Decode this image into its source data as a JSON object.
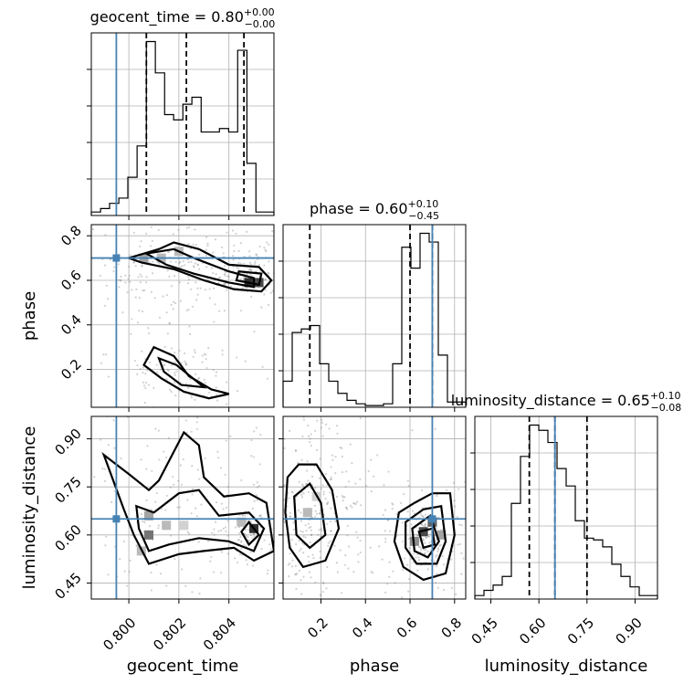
{
  "chart_data": {
    "type": "corner",
    "truth_color": "#4682b4",
    "parameters": [
      {
        "name": "geocent_time",
        "xlabel": "geocent_time",
        "range": [
          0.7985,
          0.8058
        ],
        "ticks": [
          0.8,
          0.802,
          0.804
        ],
        "tick_labels": [
          "0.800",
          "0.802",
          "0.804"
        ],
        "truth": 0.7995,
        "quantiles": [
          0.8007,
          0.8023,
          0.8046
        ],
        "title": "geocent_time = 0.80",
        "title_plus": "+0.00",
        "title_minus": "−0.00",
        "hist_edges": [
          0.7985,
          0.79887,
          0.79923,
          0.7996,
          0.79996,
          0.80033,
          0.8007,
          0.80106,
          0.80143,
          0.80179,
          0.80216,
          0.80252,
          0.80289,
          0.80326,
          0.80362,
          0.80399,
          0.80435,
          0.80472,
          0.80508,
          0.80545,
          0.8058
        ],
        "hist_counts": [
          0.02,
          0.04,
          0.07,
          0.1,
          0.22,
          0.4,
          1.0,
          0.82,
          0.58,
          0.55,
          0.64,
          0.68,
          0.48,
          0.48,
          0.5,
          0.48,
          0.95,
          0.3,
          0.02,
          0.02
        ]
      },
      {
        "name": "phase",
        "xlabel": "phase",
        "range": [
          0.03,
          0.85
        ],
        "ticks": [
          0.2,
          0.4,
          0.6,
          0.8
        ],
        "tick_labels": [
          "0.2",
          "0.4",
          "0.6",
          "0.8"
        ],
        "truth": 0.7,
        "quantiles": [
          0.15,
          0.6,
          0.7
        ],
        "title": "phase = 0.60",
        "title_plus": "+0.10",
        "title_minus": "−0.45",
        "hist_edges": [
          0.03,
          0.071,
          0.112,
          0.153,
          0.194,
          0.235,
          0.276,
          0.317,
          0.358,
          0.399,
          0.44,
          0.481,
          0.522,
          0.563,
          0.604,
          0.645,
          0.686,
          0.727,
          0.768,
          0.809,
          0.85
        ],
        "hist_counts": [
          0.15,
          0.43,
          0.45,
          0.47,
          0.25,
          0.15,
          0.08,
          0.04,
          0.02,
          0.01,
          0.01,
          0.02,
          0.25,
          0.92,
          0.8,
          1.0,
          0.95,
          0.3,
          0.03,
          0.03
        ]
      },
      {
        "name": "luminosity_distance",
        "xlabel": "luminosity_distance",
        "range": [
          0.4,
          0.97
        ],
        "ticks": [
          0.45,
          0.6,
          0.75,
          0.9
        ],
        "tick_labels": [
          "0.45",
          "0.60",
          "0.75",
          "0.90"
        ],
        "truth": 0.65,
        "quantiles": [
          0.57,
          0.65,
          0.75
        ],
        "title": "luminosity_distance = 0.65",
        "title_plus": "+0.10",
        "title_minus": "−0.08",
        "hist_edges": [
          0.4,
          0.4285,
          0.457,
          0.4855,
          0.514,
          0.5425,
          0.571,
          0.5995,
          0.628,
          0.6565,
          0.685,
          0.7135,
          0.742,
          0.7705,
          0.799,
          0.8275,
          0.856,
          0.8845,
          0.913,
          0.9415,
          0.97
        ],
        "hist_counts": [
          0.02,
          0.05,
          0.08,
          0.13,
          0.55,
          0.82,
          1.0,
          0.97,
          0.9,
          0.75,
          0.65,
          0.45,
          0.35,
          0.34,
          0.3,
          0.2,
          0.13,
          0.07,
          0.02,
          0.02
        ]
      }
    ],
    "pair_ylims": {
      "phase": [
        0.03,
        0.85
      ],
      "luminosity_distance": [
        0.4,
        0.97
      ]
    },
    "phase_ticks_y": [
      0.2,
      0.4,
      0.6,
      0.8
    ],
    "lum_ticks_y": [
      0.45,
      0.6,
      0.75,
      0.9
    ],
    "contours": {
      "geocent_vs_phase": [
        [
          [
            0.8,
            0.7
          ],
          [
            0.8012,
            0.74
          ],
          [
            0.8018,
            0.77
          ],
          [
            0.8028,
            0.74
          ],
          [
            0.804,
            0.67
          ],
          [
            0.8052,
            0.66
          ],
          [
            0.8057,
            0.6
          ],
          [
            0.8053,
            0.55
          ],
          [
            0.8042,
            0.56
          ],
          [
            0.803,
            0.6
          ],
          [
            0.8018,
            0.65
          ],
          [
            0.8005,
            0.68
          ]
        ],
        [
          [
            0.8007,
            0.72
          ],
          [
            0.8018,
            0.74
          ],
          [
            0.8026,
            0.7
          ],
          [
            0.804,
            0.64
          ],
          [
            0.805,
            0.61
          ],
          [
            0.805,
            0.57
          ],
          [
            0.804,
            0.59
          ],
          [
            0.8026,
            0.63
          ],
          [
            0.8015,
            0.67
          ]
        ],
        [
          [
            0.8044,
            0.64
          ],
          [
            0.8053,
            0.63
          ],
          [
            0.8052,
            0.58
          ],
          [
            0.8043,
            0.6
          ]
        ],
        [
          [
            0.801,
            0.3
          ],
          [
            0.8018,
            0.26
          ],
          [
            0.8024,
            0.17
          ],
          [
            0.8033,
            0.11
          ],
          [
            0.804,
            0.09
          ],
          [
            0.8032,
            0.07
          ],
          [
            0.8022,
            0.1
          ],
          [
            0.8013,
            0.16
          ],
          [
            0.8006,
            0.22
          ]
        ],
        [
          [
            0.8012,
            0.25
          ],
          [
            0.8019,
            0.22
          ],
          [
            0.803,
            0.12
          ],
          [
            0.8021,
            0.13
          ],
          [
            0.8014,
            0.19
          ]
        ]
      ],
      "geocent_vs_lum": [
        [
          [
            0.799,
            0.85
          ],
          [
            0.8,
            0.79
          ],
          [
            0.8008,
            0.74
          ],
          [
            0.8012,
            0.77
          ],
          [
            0.8022,
            0.92
          ],
          [
            0.8028,
            0.88
          ],
          [
            0.803,
            0.78
          ],
          [
            0.8038,
            0.72
          ],
          [
            0.8048,
            0.73
          ],
          [
            0.8055,
            0.7
          ],
          [
            0.8058,
            0.55
          ],
          [
            0.805,
            0.52
          ],
          [
            0.8042,
            0.56
          ],
          [
            0.803,
            0.55
          ],
          [
            0.802,
            0.54
          ],
          [
            0.8008,
            0.51
          ],
          [
            0.8002,
            0.6
          ],
          [
            0.7998,
            0.68
          ]
        ],
        [
          [
            0.8003,
            0.69
          ],
          [
            0.801,
            0.67
          ],
          [
            0.802,
            0.73
          ],
          [
            0.8028,
            0.74
          ],
          [
            0.8036,
            0.66
          ],
          [
            0.8048,
            0.67
          ],
          [
            0.8054,
            0.62
          ],
          [
            0.805,
            0.55
          ],
          [
            0.804,
            0.58
          ],
          [
            0.8028,
            0.59
          ],
          [
            0.8016,
            0.57
          ],
          [
            0.8008,
            0.55
          ],
          [
            0.8004,
            0.62
          ]
        ],
        [
          [
            0.8048,
            0.64
          ],
          [
            0.8052,
            0.6
          ],
          [
            0.8048,
            0.57
          ],
          [
            0.8045,
            0.61
          ]
        ]
      ],
      "phase_vs_lum": [
        [
          [
            0.05,
            0.78
          ],
          [
            0.1,
            0.82
          ],
          [
            0.18,
            0.82
          ],
          [
            0.25,
            0.74
          ],
          [
            0.28,
            0.62
          ],
          [
            0.22,
            0.52
          ],
          [
            0.12,
            0.5
          ],
          [
            0.06,
            0.56
          ],
          [
            0.04,
            0.67
          ]
        ],
        [
          [
            0.08,
            0.72
          ],
          [
            0.15,
            0.76
          ],
          [
            0.2,
            0.7
          ],
          [
            0.22,
            0.6
          ],
          [
            0.15,
            0.56
          ],
          [
            0.09,
            0.6
          ]
        ],
        [
          [
            0.55,
            0.67
          ],
          [
            0.62,
            0.7
          ],
          [
            0.7,
            0.73
          ],
          [
            0.78,
            0.73
          ],
          [
            0.8,
            0.6
          ],
          [
            0.76,
            0.48
          ],
          [
            0.66,
            0.46
          ],
          [
            0.57,
            0.5
          ],
          [
            0.53,
            0.58
          ]
        ],
        [
          [
            0.58,
            0.64
          ],
          [
            0.66,
            0.68
          ],
          [
            0.74,
            0.69
          ],
          [
            0.76,
            0.58
          ],
          [
            0.72,
            0.51
          ],
          [
            0.63,
            0.51
          ],
          [
            0.58,
            0.56
          ]
        ],
        [
          [
            0.61,
            0.62
          ],
          [
            0.69,
            0.66
          ],
          [
            0.73,
            0.58
          ],
          [
            0.68,
            0.53
          ],
          [
            0.62,
            0.55
          ]
        ],
        [
          [
            0.64,
            0.61
          ],
          [
            0.7,
            0.62
          ],
          [
            0.71,
            0.57
          ],
          [
            0.66,
            0.56
          ]
        ]
      ]
    },
    "heat_cells": {
      "geocent_vs_phase": [
        [
          0.8048,
          0.59,
          0.9
        ],
        [
          0.8052,
          0.59,
          0.8
        ],
        [
          0.8006,
          0.7,
          0.4
        ],
        [
          0.8013,
          0.7,
          0.3
        ],
        [
          0.802,
          0.73,
          0.3
        ]
      ],
      "geocent_vs_lum": [
        [
          0.805,
          0.62,
          0.9
        ],
        [
          0.8008,
          0.6,
          0.6
        ],
        [
          0.8008,
          0.66,
          0.4
        ],
        [
          0.8015,
          0.63,
          0.3
        ],
        [
          0.8045,
          0.64,
          0.3
        ],
        [
          0.8022,
          0.63,
          0.2
        ],
        [
          0.8005,
          0.55,
          0.3
        ]
      ],
      "phase_vs_lum": [
        [
          0.66,
          0.61,
          0.8
        ],
        [
          0.7,
          0.64,
          0.7
        ],
        [
          0.62,
          0.58,
          0.5
        ],
        [
          0.74,
          0.6,
          0.4
        ],
        [
          0.14,
          0.67,
          0.3
        ],
        [
          0.18,
          0.72,
          0.2
        ]
      ]
    }
  }
}
